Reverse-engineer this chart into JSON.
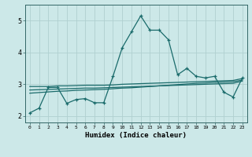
{
  "title": "",
  "xlabel": "Humidex (Indice chaleur)",
  "bg_color": "#cce8e8",
  "grid_color": "#b0d0d0",
  "line_color": "#1a6b6b",
  "xlim": [
    -0.5,
    23.5
  ],
  "ylim": [
    1.8,
    5.5
  ],
  "xticks": [
    0,
    1,
    2,
    3,
    4,
    5,
    6,
    7,
    8,
    9,
    10,
    11,
    12,
    13,
    14,
    15,
    16,
    17,
    18,
    19,
    20,
    21,
    22,
    23
  ],
  "yticks": [
    2,
    3,
    4,
    5
  ],
  "main_y": [
    2.1,
    2.25,
    2.9,
    2.9,
    2.4,
    2.52,
    2.55,
    2.42,
    2.42,
    3.25,
    4.15,
    4.65,
    5.15,
    4.7,
    4.7,
    4.4,
    3.3,
    3.5,
    3.25,
    3.2,
    3.25,
    2.75,
    2.6,
    3.2
  ],
  "reg1_y": [
    2.93,
    2.93,
    2.93,
    2.95,
    2.95,
    2.96,
    2.97,
    2.97,
    2.97,
    2.98,
    3.0,
    3.01,
    3.02,
    3.03,
    3.04,
    3.05,
    3.06,
    3.07,
    3.08,
    3.09,
    3.1,
    3.11,
    3.12,
    3.18
  ],
  "reg2_y": [
    2.82,
    2.83,
    2.84,
    2.85,
    2.86,
    2.87,
    2.88,
    2.88,
    2.89,
    2.9,
    2.91,
    2.92,
    2.93,
    2.94,
    2.95,
    2.96,
    2.97,
    2.98,
    2.99,
    3.0,
    3.01,
    3.02,
    3.03,
    3.1
  ],
  "reg3_y": [
    2.72,
    2.74,
    2.76,
    2.78,
    2.79,
    2.81,
    2.82,
    2.83,
    2.84,
    2.86,
    2.88,
    2.89,
    2.91,
    2.93,
    2.95,
    2.97,
    2.99,
    3.01,
    3.03,
    3.04,
    3.06,
    3.07,
    3.08,
    3.13
  ]
}
